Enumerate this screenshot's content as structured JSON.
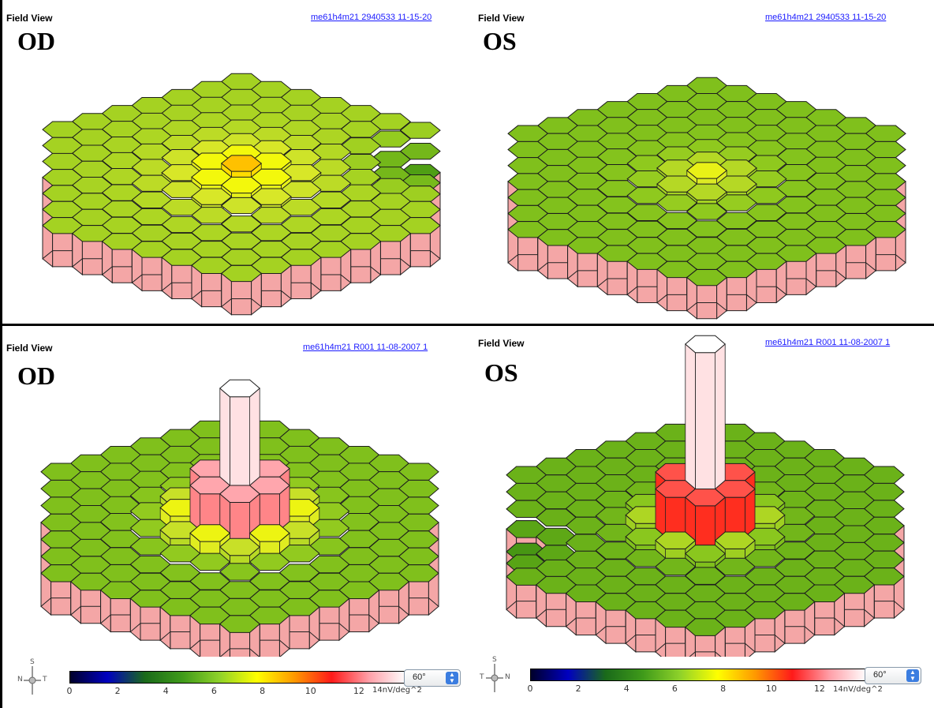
{
  "panels": [
    {
      "id": "top-od",
      "title": "Field View",
      "eye": "OD",
      "link": "me61h4m21 2940533 11-15-20",
      "kind": "flat"
    },
    {
      "id": "top-os",
      "title": "Field View",
      "eye": "OS",
      "link": "me61h4m21 2940533 11-15-20",
      "kind": "flat"
    },
    {
      "id": "bottom-od",
      "title": "Field View",
      "eye": "OD",
      "link": "me61h4m21 R001 11-08-2007 1",
      "kind": "peak"
    },
    {
      "id": "bottom-os",
      "title": "Field View",
      "eye": "OS",
      "link": "me61h4m21 R001 11-08-2007 1",
      "kind": "peak"
    }
  ],
  "scales": [
    {
      "compass": {
        "top": "S",
        "left": "N",
        "right": "T"
      },
      "ticks": [
        "0",
        "2",
        "4",
        "6",
        "8",
        "10",
        "12"
      ],
      "unit": "14nV/deg^2",
      "angle": "60°"
    },
    {
      "compass": {
        "top": "S",
        "left": "T",
        "right": "N"
      },
      "ticks": [
        "0",
        "2",
        "4",
        "6",
        "8",
        "10",
        "12"
      ],
      "unit": "14nV/deg^2",
      "angle": "60°"
    }
  ],
  "colors": {
    "base_green": "#3a8a1a",
    "side_pink": "#f4a6a6",
    "link_blue": "#1a1aff",
    "scale_stops": [
      "#00002a",
      "#0000c0",
      "#1a6a1a",
      "#3f9a1a",
      "#8fd22a",
      "#ffff00",
      "#ff9900",
      "#ff1a1a",
      "#ff9fa8",
      "#ffffff"
    ]
  }
}
